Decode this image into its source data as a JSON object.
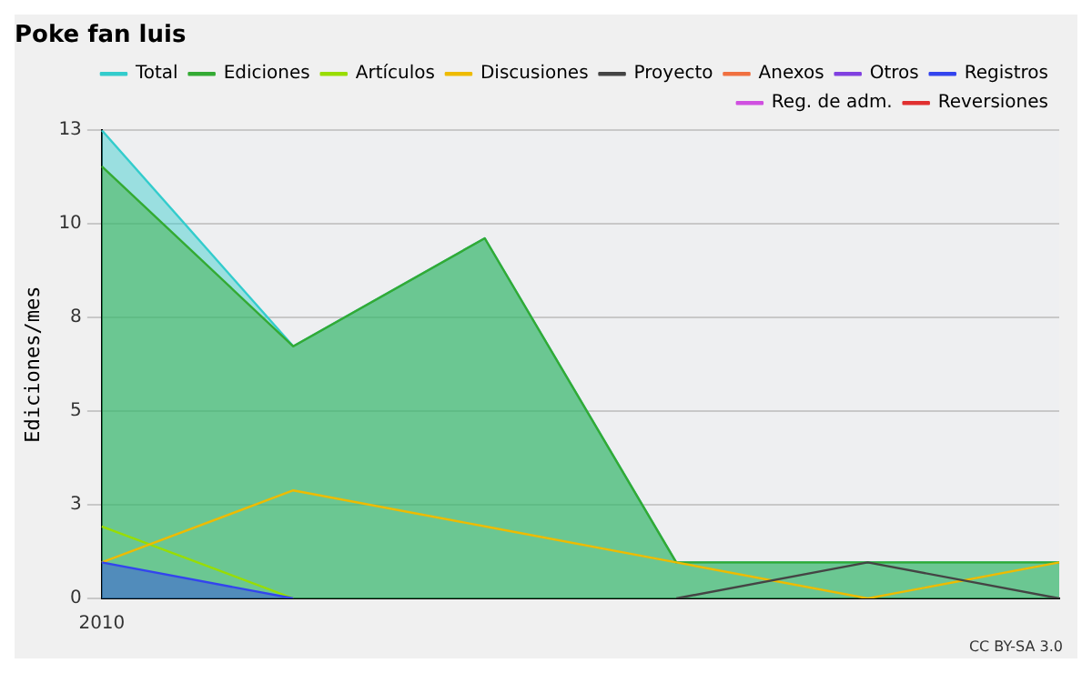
{
  "chart_data": {
    "type": "line",
    "title": "Poke fan luis",
    "ylabel": "Ediciones/mes",
    "categories": [
      "2010",
      null,
      null,
      null,
      null,
      null
    ],
    "series": [
      {
        "name": "Total",
        "type": "area",
        "color": "#33cccc",
        "values": [
          13,
          7,
          10,
          1,
          1,
          1
        ]
      },
      {
        "name": "Ediciones",
        "type": "area",
        "color": "#33aa33",
        "values": [
          12,
          7,
          10,
          1,
          1,
          1
        ]
      },
      {
        "name": "Artículos",
        "type": "line",
        "color": "#99dd00",
        "values": [
          2,
          0,
          null,
          null,
          null,
          null
        ]
      },
      {
        "name": "Discusiones",
        "type": "line",
        "color": "#eebb00",
        "values": [
          1,
          3,
          2,
          1,
          0,
          1
        ]
      },
      {
        "name": "Proyecto",
        "type": "line",
        "color": "#444444",
        "values": [
          null,
          null,
          null,
          0,
          1,
          0
        ]
      },
      {
        "name": "Anexos",
        "type": "line",
        "color": "#f07040",
        "values": [
          null,
          null,
          null,
          null,
          null,
          null
        ]
      },
      {
        "name": "Otros",
        "type": "line",
        "color": "#8040e0",
        "values": [
          null,
          null,
          null,
          null,
          null,
          null
        ]
      },
      {
        "name": "Registros",
        "type": "area",
        "color": "#3344ee",
        "values": [
          1,
          0,
          null,
          null,
          null,
          null
        ]
      },
      {
        "name": "Reg. de adm.",
        "type": "line",
        "color": "#d050e0",
        "values": [
          null,
          null,
          null,
          null,
          null,
          null
        ]
      },
      {
        "name": "Reversiones",
        "type": "line",
        "color": "#e03030",
        "values": [
          null,
          null,
          null,
          null,
          null,
          null
        ]
      }
    ],
    "ylim": [
      0,
      13
    ],
    "yticks": [
      0,
      {
        "value": 2.6,
        "label": "3"
      },
      {
        "value": 5.2,
        "label": "5"
      },
      {
        "value": 7.8,
        "label": "8"
      },
      {
        "value": 10.4,
        "label": "10"
      },
      13
    ],
    "grid": "y",
    "legend": "top right",
    "marker": "none",
    "line_style": "solid",
    "annotations": [
      "CC BY-SA 3.0"
    ]
  }
}
